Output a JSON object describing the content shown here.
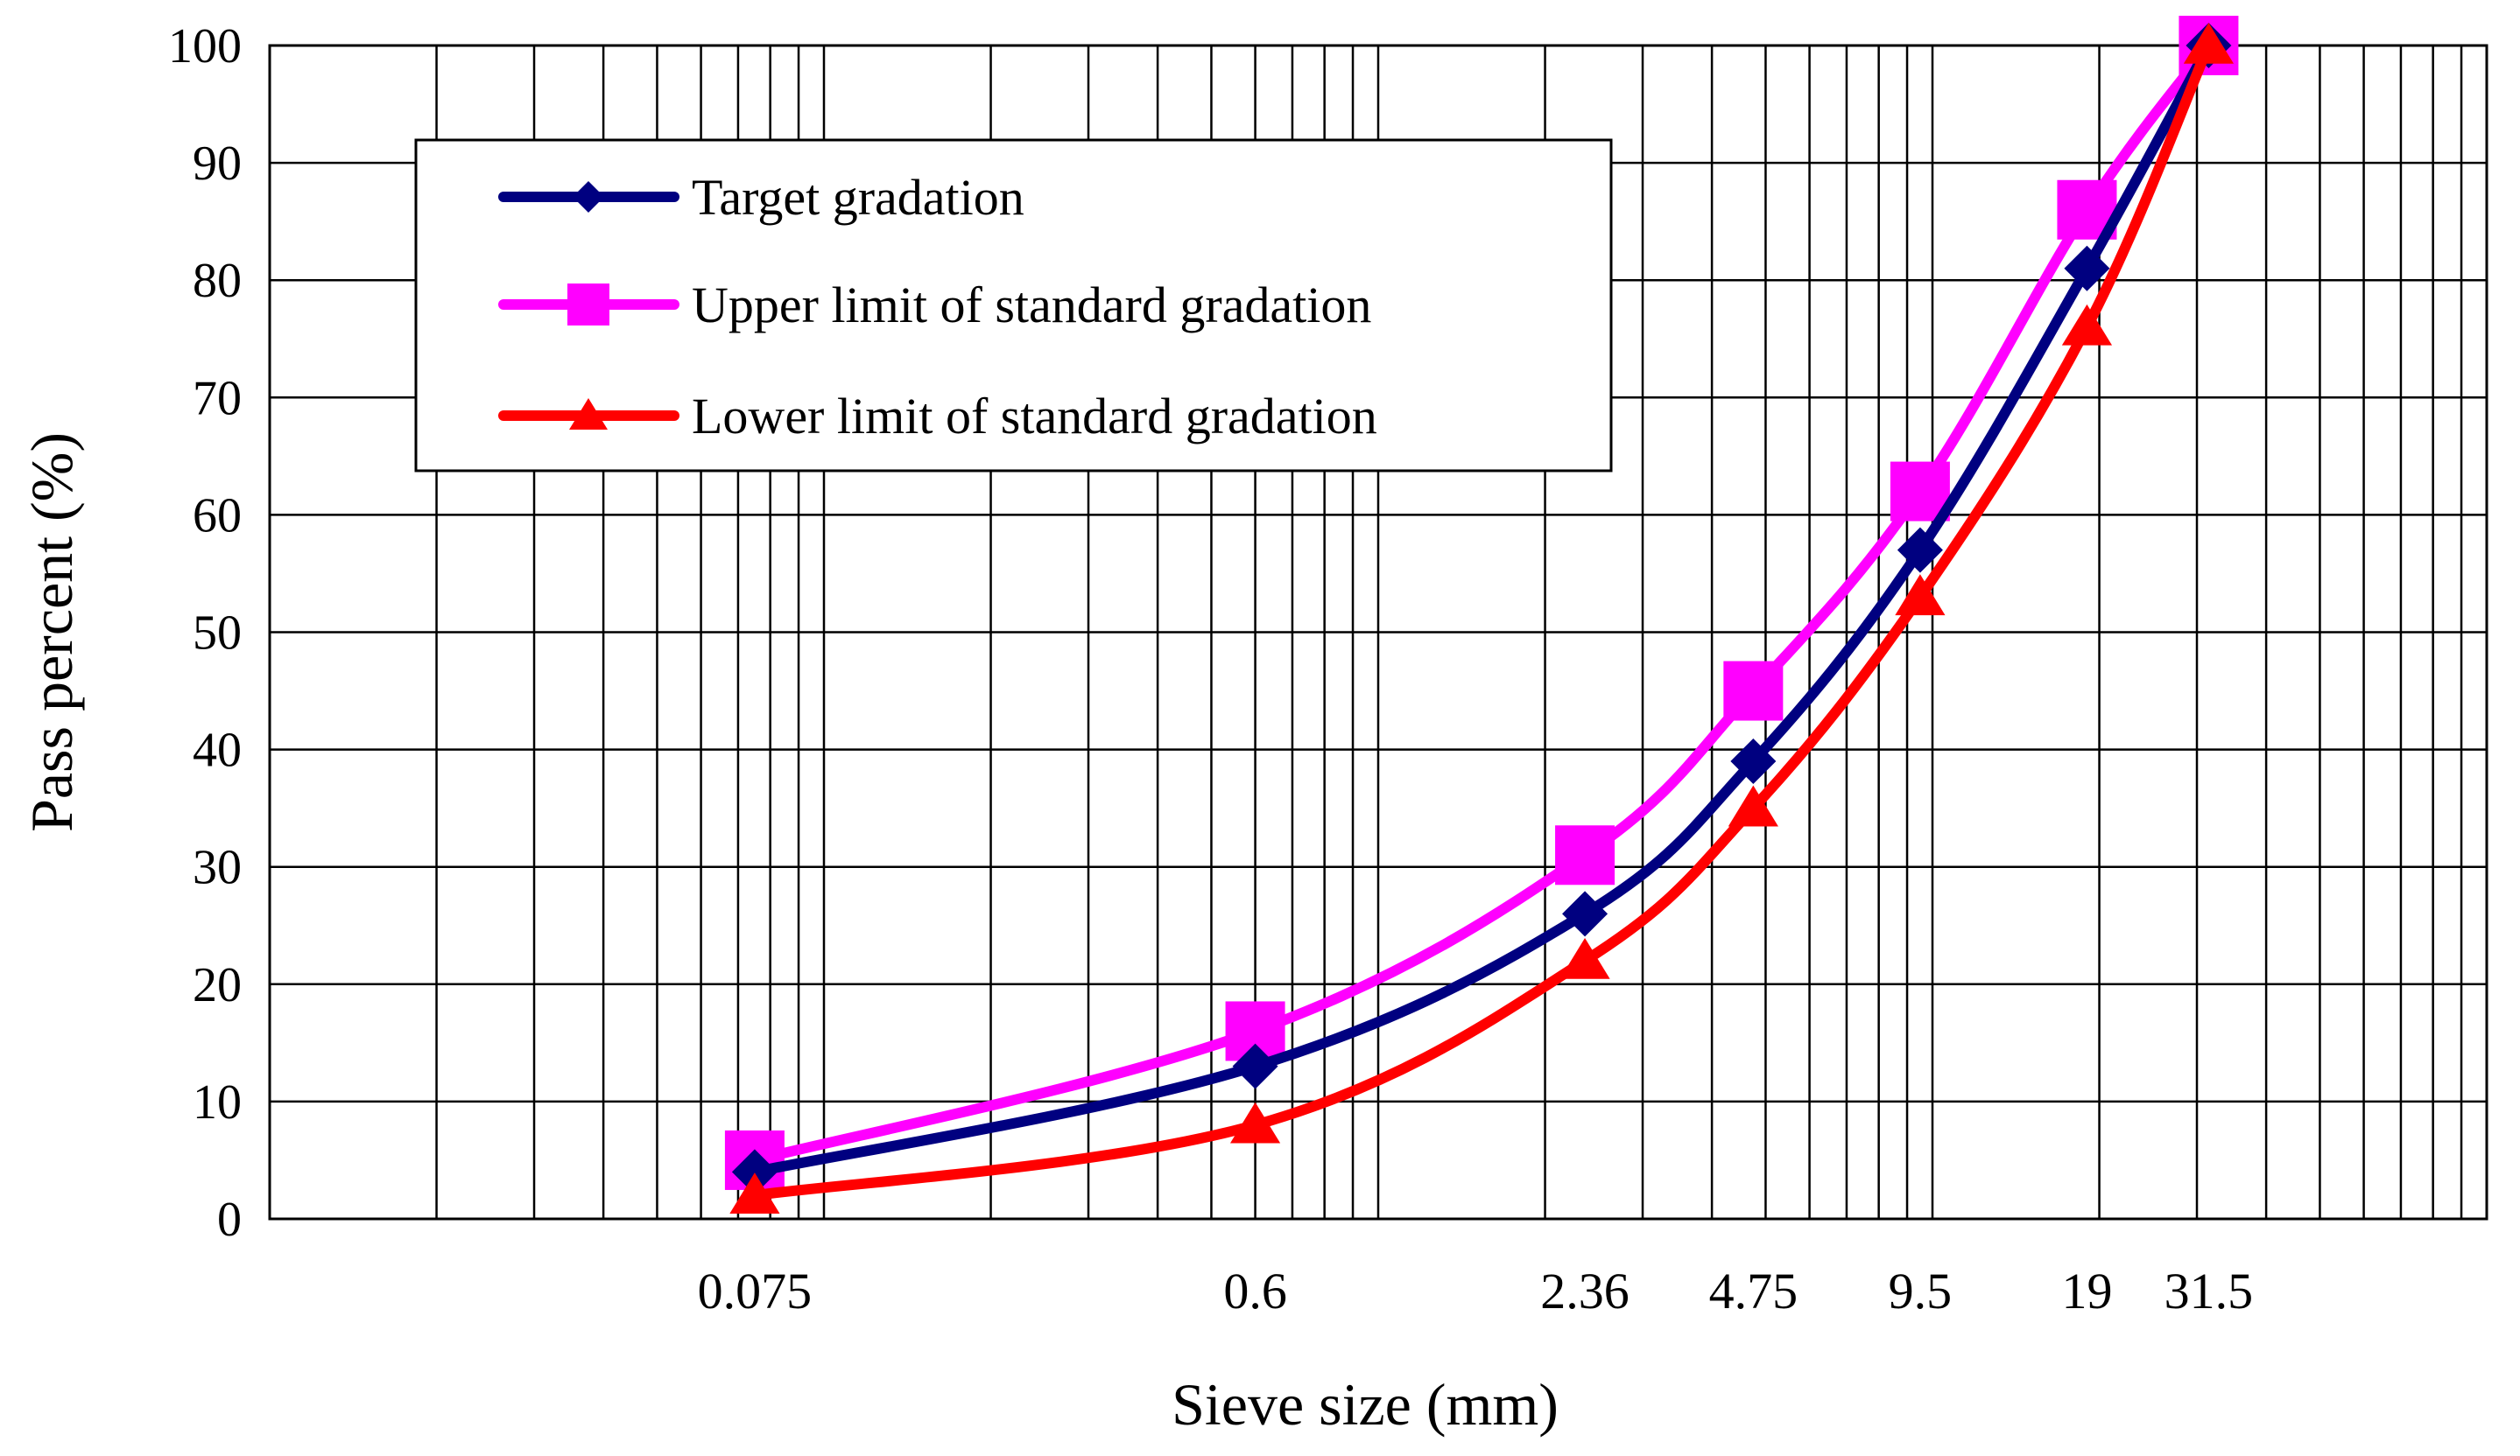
{
  "chart_data": {
    "type": "line",
    "title": "",
    "xlabel": "Sieve  size (mm)",
    "ylabel": "Pass percent  (%)",
    "x_scale": "log",
    "xlim": [
      0.01,
      100
    ],
    "ylim": [
      0,
      100
    ],
    "y_ticks": [
      0,
      10,
      20,
      30,
      40,
      50,
      60,
      70,
      80,
      90,
      100
    ],
    "x_ticks": [
      0.075,
      0.6,
      2.36,
      4.75,
      9.5,
      19,
      31.5
    ],
    "x_tick_labels": [
      "0.075",
      "0.6",
      "2.36",
      "4.75",
      "9.5",
      "19",
      "31.5"
    ],
    "grid": true,
    "legend_position": "top-left",
    "series": [
      {
        "name": "Target gradation",
        "color": "#000080",
        "marker": "diamond",
        "x": [
          0.075,
          0.6,
          2.36,
          4.75,
          9.5,
          19,
          31.5
        ],
        "values": [
          4,
          13,
          26,
          39,
          57,
          81,
          100
        ]
      },
      {
        "name": "Upper limit of standard gradation",
        "color": "#ff00ff",
        "marker": "square",
        "x": [
          0.075,
          0.6,
          2.36,
          4.75,
          9.5,
          19,
          31.5
        ],
        "values": [
          5,
          16,
          31,
          45,
          62,
          86,
          100
        ]
      },
      {
        "name": "Lower limit of standard gradation",
        "color": "#ff0000",
        "marker": "triangle",
        "x": [
          0.075,
          0.6,
          2.36,
          4.75,
          9.5,
          19,
          31.5
        ],
        "values": [
          2,
          8,
          22,
          35,
          53,
          76,
          100
        ]
      }
    ]
  }
}
